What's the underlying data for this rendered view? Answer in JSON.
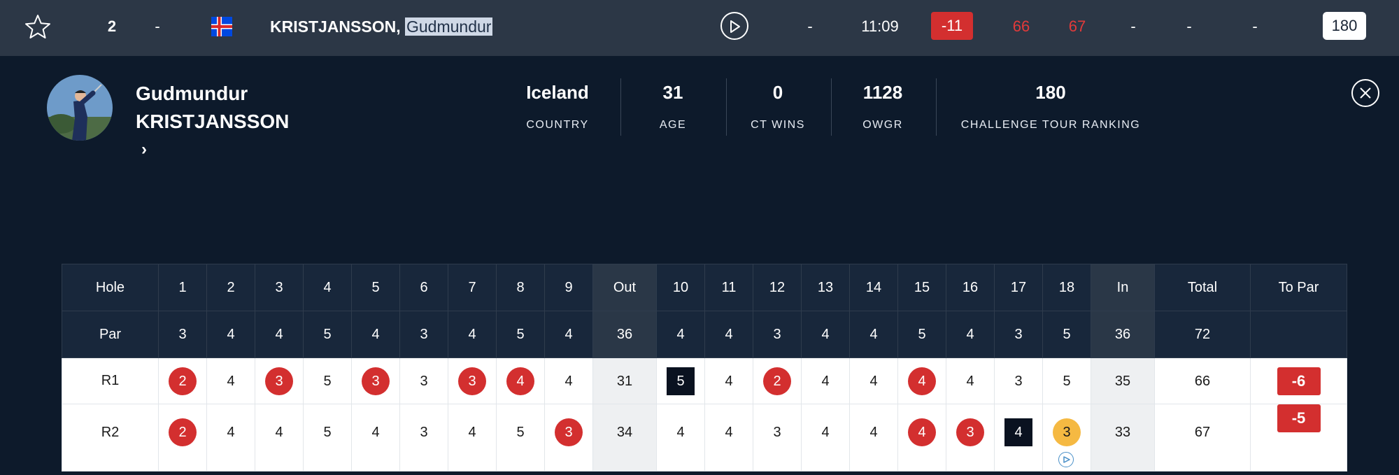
{
  "player_row": {
    "position": "2",
    "position_change": "-",
    "flag_country": "Iceland",
    "name_last": "KRISTJANSSON,",
    "name_first": "Gudmundur",
    "thru": "-",
    "tee_time": "11:09",
    "total_to_par": "-11",
    "round1": "66",
    "round2": "67",
    "round3": "-",
    "round4": "-",
    "total": "-",
    "ranking": "180"
  },
  "profile": {
    "first_name": "Gudmundur",
    "last_name": "KRISTJANSSON",
    "stats": [
      {
        "value": "Iceland",
        "label": "COUNTRY"
      },
      {
        "value": "31",
        "label": "AGE"
      },
      {
        "value": "0",
        "label": "CT WINS"
      },
      {
        "value": "1128",
        "label": "OWGR"
      },
      {
        "value": "180",
        "label": "CHALLENGE TOUR RANKING"
      }
    ]
  },
  "scorecard": {
    "hole_label": "Hole",
    "par_label": "Par",
    "holes": [
      "1",
      "2",
      "3",
      "4",
      "5",
      "6",
      "7",
      "8",
      "9",
      "Out",
      "10",
      "11",
      "12",
      "13",
      "14",
      "15",
      "16",
      "17",
      "18",
      "In",
      "Total",
      "To Par"
    ],
    "pars": [
      "3",
      "4",
      "4",
      "5",
      "4",
      "3",
      "4",
      "5",
      "4",
      "36",
      "4",
      "4",
      "3",
      "4",
      "4",
      "5",
      "4",
      "3",
      "5",
      "36",
      "72",
      ""
    ],
    "rounds": [
      {
        "label": "R1",
        "scores": [
          "2",
          "4",
          "3",
          "5",
          "3",
          "3",
          "3",
          "4",
          "4",
          "31",
          "5",
          "4",
          "2",
          "4",
          "4",
          "4",
          "4",
          "3",
          "5",
          "35",
          "66"
        ],
        "to_par": "-6"
      },
      {
        "label": "R2",
        "scores": [
          "2",
          "4",
          "4",
          "5",
          "4",
          "3",
          "4",
          "5",
          "3",
          "34",
          "4",
          "4",
          "3",
          "4",
          "4",
          "4",
          "3",
          "4",
          "3",
          "33",
          "67"
        ],
        "to_par": "-5"
      }
    ]
  },
  "colors": {
    "birdie": "#d32f2f",
    "bogey": "#0a1220",
    "live": "#f5b942",
    "header_bg": "#18273b"
  }
}
